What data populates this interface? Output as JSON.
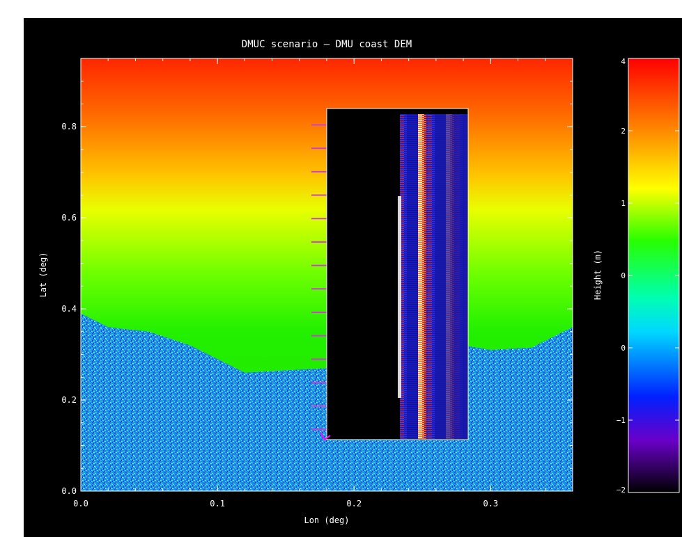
{
  "chart_data": [
    {
      "type": "heatmap",
      "title": "DMUC scenario — DMU coast DEM",
      "xlabel": "Lon (deg)",
      "ylabel": "Lat (deg)",
      "xlim": [
        0.0,
        0.36
      ],
      "ylim": [
        0.0,
        0.95
      ],
      "x_ticks": [
        "0.0",
        "0.1",
        "0.2",
        "0.3"
      ],
      "y_ticks": [
        "0.0",
        "0.2",
        "0.4",
        "0.6",
        "0.8"
      ],
      "x_tick_values": [
        0.0,
        0.1,
        0.2,
        0.3
      ],
      "y_tick_values": [
        0.0,
        0.2,
        0.4,
        0.6,
        0.8
      ],
      "land_boundary": {
        "lon": [
          0.0,
          0.02,
          0.05,
          0.08,
          0.1,
          0.12,
          0.15,
          0.18,
          0.2,
          0.22,
          0.25,
          0.28,
          0.3,
          0.33,
          0.36
        ],
        "lat": [
          0.39,
          0.36,
          0.35,
          0.32,
          0.29,
          0.26,
          0.265,
          0.27,
          0.265,
          0.27,
          0.3,
          0.32,
          0.31,
          0.315,
          0.36
        ]
      },
      "inset": {
        "lon": [
          0.18,
          0.28
        ],
        "lat": [
          0.12,
          0.85
        ]
      }
    },
    {
      "type": "colorbar",
      "label": "Height (m)",
      "tick_labels": [
        "4",
        "2",
        "1",
        "0",
        "0",
        "−1",
        "−2"
      ],
      "colors": [
        "#ff0000",
        "#ff8000",
        "#ffff00",
        "#00ff00",
        "#00ffff",
        "#0000ff",
        "#8000ff",
        "#000000"
      ]
    }
  ]
}
